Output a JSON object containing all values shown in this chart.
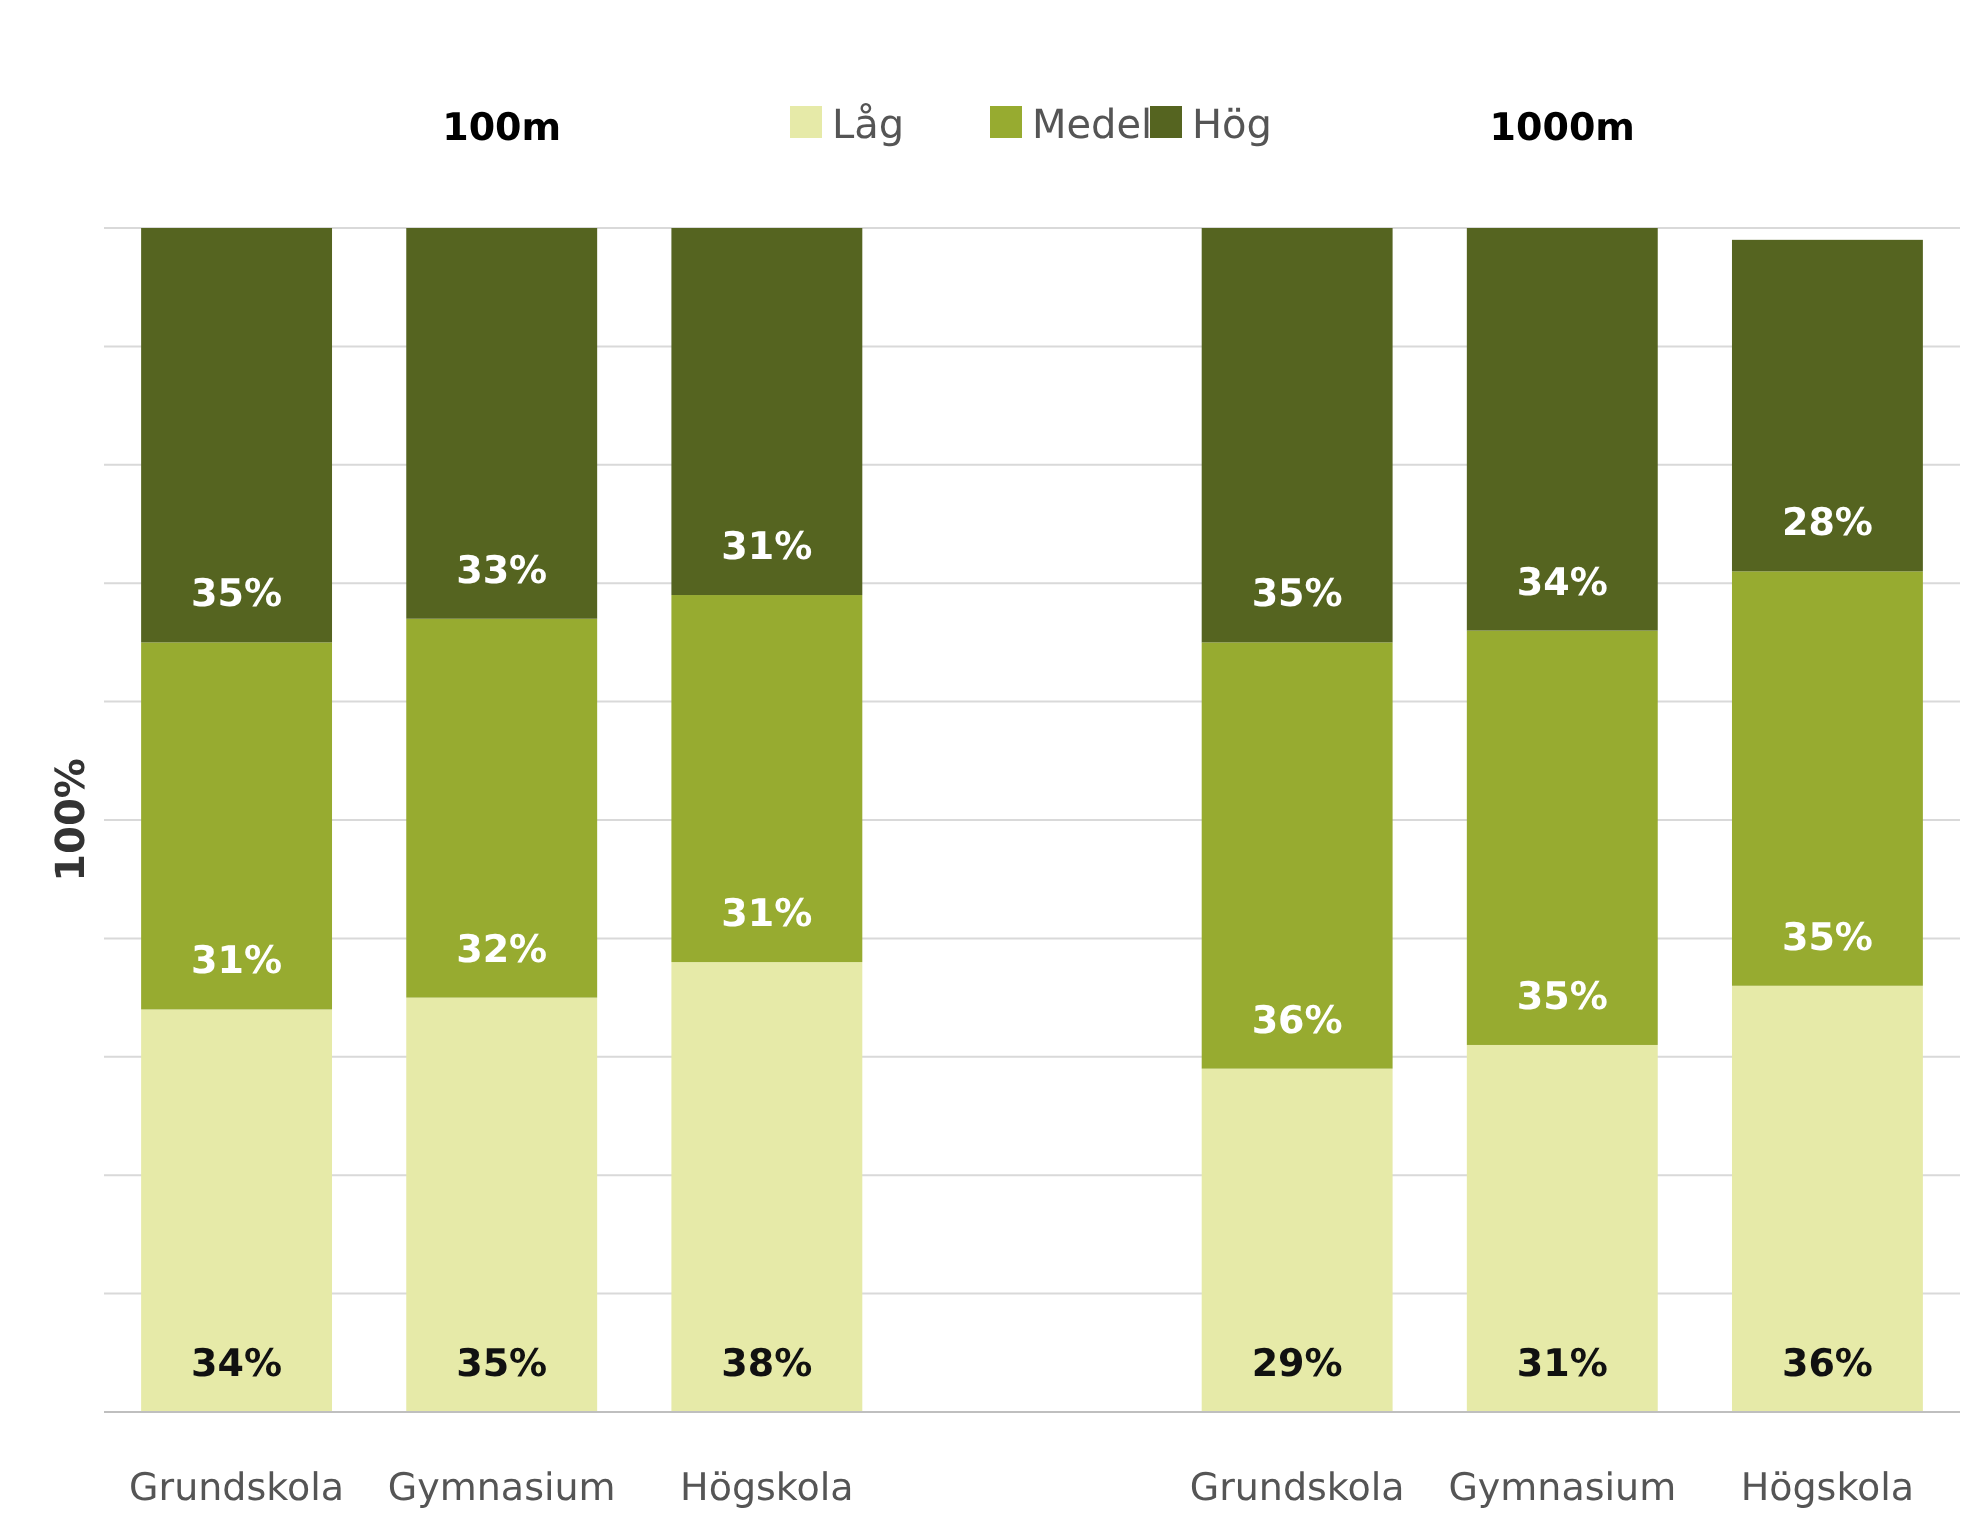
{
  "chart_data": {
    "type": "bar",
    "stacked": true,
    "ylabel": "100%",
    "categories": [
      "Grundskola",
      "Gymnasium",
      "Högskola",
      null,
      "Grundskola",
      "Gymnasium",
      "Högskola"
    ],
    "series": [
      {
        "name": "Låg",
        "color": "#e6eaa8",
        "values": [
          34,
          35,
          38,
          null,
          29,
          31,
          36
        ],
        "value_labels": [
          "34%",
          "35%",
          "38%",
          null,
          "29%",
          "31%",
          "36%"
        ]
      },
      {
        "name": "Medel",
        "color": "#97ab30",
        "values": [
          31,
          32,
          31,
          null,
          36,
          35,
          35
        ],
        "value_labels": [
          "31%",
          "32%",
          "31%",
          null,
          "36%",
          "35%",
          "35%"
        ]
      },
      {
        "name": "Hög",
        "color": "#556420",
        "values": [
          35,
          33,
          31,
          null,
          35,
          34,
          28
        ],
        "value_labels": [
          "35%",
          "33%",
          "31%",
          null,
          "35%",
          "34%",
          "28%"
        ]
      }
    ],
    "ylim": [
      0,
      100
    ],
    "yticks": [
      {
        "value": 0,
        "label": null
      },
      {
        "value": 10,
        "label": null
      },
      {
        "value": 20,
        "label": null
      },
      {
        "value": 30,
        "label": null
      },
      {
        "value": 40,
        "label": null
      },
      {
        "value": 50,
        "label": null
      },
      {
        "value": 60,
        "label": null
      },
      {
        "value": 70,
        "label": null
      },
      {
        "value": 80,
        "label": null
      },
      {
        "value": 90,
        "label": null
      },
      {
        "value": 100,
        "label": null
      }
    ],
    "tick_labels": "x",
    "grid": "y",
    "legend": "top",
    "annotations": [
      "100m",
      "1000m"
    ]
  }
}
